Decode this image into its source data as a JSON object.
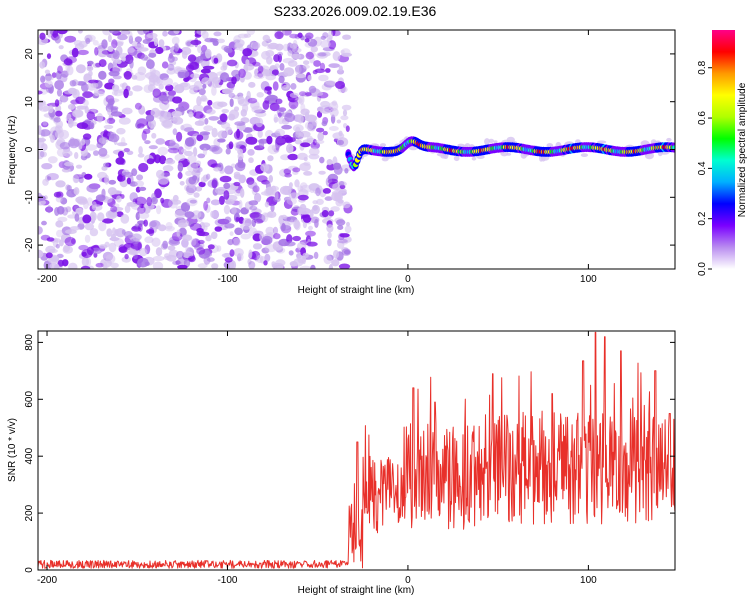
{
  "title": "S233.2026.009.02.19.E36",
  "colors": {
    "snr_line": "#e8302a",
    "axis": "#000000",
    "scatter_faint": "#d6c3f0",
    "scatter_mid": "#a778e6",
    "scatter_dark": "#7b12e6"
  },
  "chart_data": [
    {
      "id": "spectrogram",
      "type": "heatmap",
      "title": "S233.2026.009.02.19.E36",
      "xlabel": "Height of straight line (km)",
      "ylabel": "Frequency (Hz)",
      "xlim": [
        -205,
        148
      ],
      "ylim": [
        -25,
        25
      ],
      "xticks": [
        -200,
        -100,
        0,
        100
      ],
      "xtick_labels": [
        "-200",
        "-100",
        "0",
        "100"
      ],
      "yticks": [
        -20,
        -10,
        0,
        10,
        20
      ],
      "ytick_labels": [
        "-20",
        "-10",
        "0",
        "10",
        "20"
      ],
      "noise_region_x": [
        -205,
        -33
      ],
      "signal_start_x": -33,
      "signal_freq_hz": 0,
      "signal_dip": {
        "x": -30,
        "freq": -4
      },
      "colorbar": {
        "label": "Normalized spectral amplitude",
        "range": [
          0,
          0.95
        ],
        "ticks": [
          0.0,
          0.2,
          0.4,
          0.6,
          0.8
        ],
        "tick_labels": [
          "0.0",
          "0.2",
          "0.4",
          "0.6",
          "0.8"
        ],
        "colors": [
          "#ffffff",
          "#b98cf0",
          "#7a00ff",
          "#0000ff",
          "#00b0ff",
          "#00ffd0",
          "#00ff00",
          "#b0ff00",
          "#ffff00",
          "#ff9900",
          "#ff0000",
          "#ff0088"
        ]
      }
    },
    {
      "id": "snr",
      "type": "line",
      "xlabel": "Height of straight line (km)",
      "ylabel": "SNR (10 * v/v)",
      "xlim": [
        -205,
        148
      ],
      "ylim": [
        0,
        840
      ],
      "xticks": [
        -200,
        -100,
        0,
        100
      ],
      "xtick_labels": [
        "-200",
        "-100",
        "0",
        "100"
      ],
      "yticks": [
        0,
        200,
        400,
        600,
        800
      ],
      "ytick_labels": [
        "0",
        "200",
        "400",
        "600",
        "800"
      ],
      "series": [
        {
          "name": "SNR",
          "color": "#e8302a",
          "segments": [
            {
              "x_range": [
                -205,
                -33
              ],
              "mean": 20,
              "spread": 14,
              "note": "noise floor"
            },
            {
              "x_range": [
                -33,
                -25
              ],
              "mean": 160,
              "spread": 160,
              "note": "onset"
            },
            {
              "x_range": [
                -25,
                0
              ],
              "mean": 260,
              "spread": 140
            },
            {
              "x_range": [
                0,
                50
              ],
              "mean": 330,
              "spread": 190
            },
            {
              "x_range": [
                50,
                148
              ],
              "mean": 360,
              "spread": 200
            }
          ],
          "peaks": [
            [
              -28,
              450
            ],
            [
              3,
              640
            ],
            [
              15,
              590
            ],
            [
              47,
              690
            ],
            [
              80,
              620
            ],
            [
              97,
              735
            ],
            [
              104,
              835
            ],
            [
              109,
              820
            ],
            [
              118,
              770
            ],
            [
              137,
              700
            ],
            [
              145,
              550
            ]
          ]
        }
      ]
    }
  ]
}
